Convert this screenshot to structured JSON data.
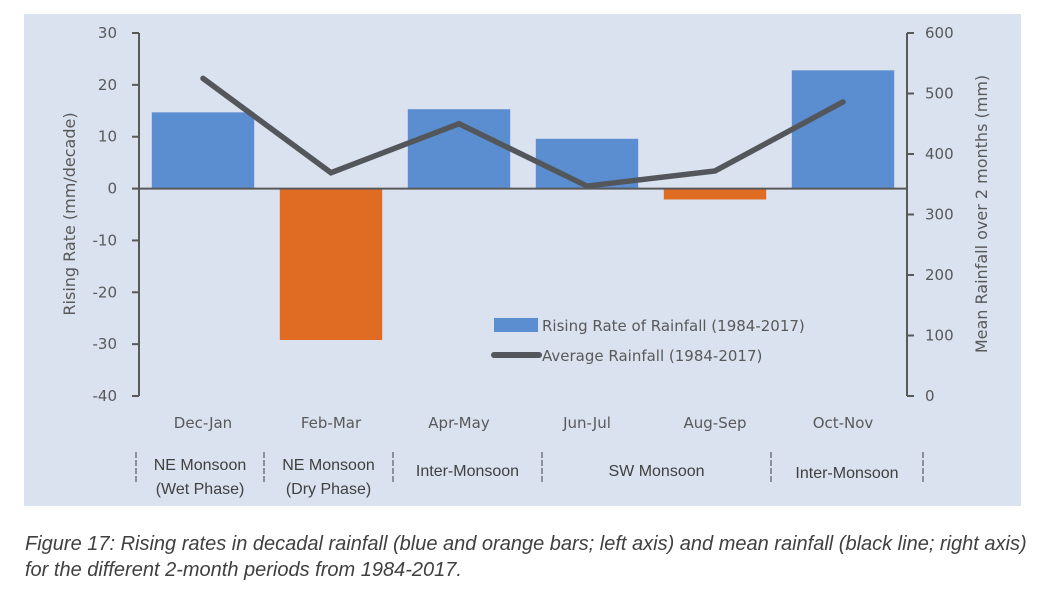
{
  "chart_data": {
    "type": "bar",
    "title": "",
    "categories": [
      "Dec-Jan",
      "Feb-Mar",
      "Apr-May",
      "Jun-Jul",
      "Aug-Sep",
      "Oct-Nov"
    ],
    "series": [
      {
        "name": "Rising Rate of Rainfall (1984-2017)",
        "type": "bar",
        "axis": "left",
        "values": [
          14.7,
          -29.2,
          15.3,
          9.6,
          -2.1,
          22.8
        ],
        "color_positive": "#5b8ed0",
        "color_negative": "#e06b22"
      },
      {
        "name": "Average Rainfall (1984-2017)",
        "type": "line",
        "axis": "right",
        "values": [
          525,
          369,
          450,
          347,
          372,
          486
        ],
        "color": "#53575c"
      }
    ],
    "left_axis": {
      "label": "Rising Rate (mm/decade)",
      "range": [
        -40,
        30
      ],
      "ticks": [
        30,
        20,
        10,
        0,
        -10,
        -20,
        -30,
        -40
      ]
    },
    "right_axis": {
      "label": "Mean Rainfall over 2 months (mm)",
      "range": [
        0,
        600
      ],
      "ticks": [
        600,
        500,
        400,
        300,
        200,
        100,
        0
      ]
    },
    "xlabel": "",
    "grid": false,
    "legend": {
      "placement": "lower-right-inside",
      "entries": [
        {
          "label": "Rising Rate of Rainfall (1984-2017)",
          "marker": "bar",
          "color": "#5b8ed0"
        },
        {
          "label": "Average Rainfall (1984-2017)",
          "marker": "line",
          "color": "#53575c"
        }
      ]
    },
    "season_groups": [
      {
        "lines": [
          "NE Monsoon",
          "(Wet Phase)"
        ],
        "categories": [
          "Dec-Jan"
        ]
      },
      {
        "lines": [
          "NE Monsoon",
          "(Dry Phase)"
        ],
        "categories": [
          "Feb-Mar"
        ]
      },
      {
        "lines": [
          "Inter-Monsoon"
        ],
        "categories": [
          "Apr-May"
        ]
      },
      {
        "lines": [
          "SW Monsoon"
        ],
        "categories": [
          "Jun-Jul",
          "Aug-Sep"
        ]
      },
      {
        "lines": [
          "Inter-Monsoon"
        ],
        "categories": [
          "Oct-Nov"
        ]
      }
    ]
  },
  "caption": "Figure 17: Rising rates in decadal rainfall (blue and orange bars; left axis) and mean rainfall (black line; right axis) for the different 2-month periods from 1984-2017.",
  "colors": {
    "panel_background": "#dae1ef",
    "axis": "#595959",
    "text": "#595959"
  }
}
